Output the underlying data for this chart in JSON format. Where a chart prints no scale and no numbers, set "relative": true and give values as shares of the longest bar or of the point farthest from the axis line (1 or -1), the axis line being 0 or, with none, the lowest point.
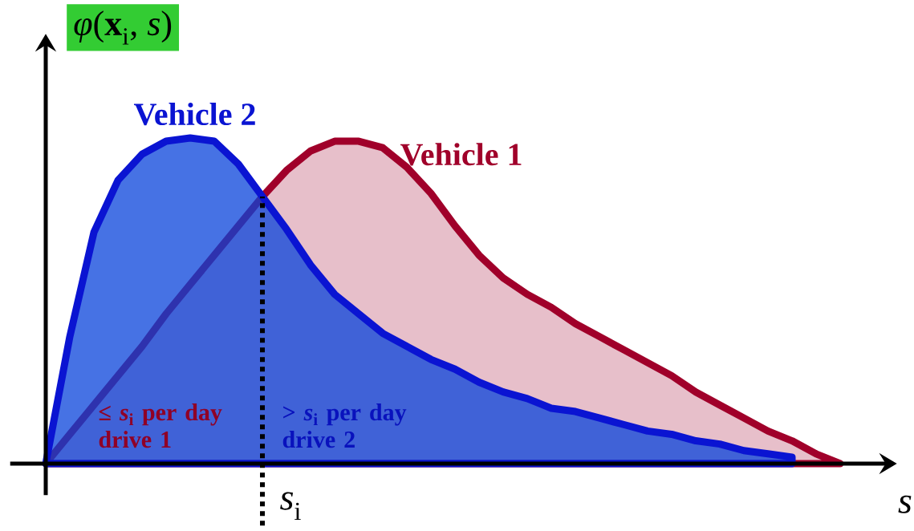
{
  "chart_data": {
    "type": "area",
    "relative": true,
    "legend": false,
    "categories": [
      null,
      null,
      null,
      null,
      null,
      null,
      null,
      null,
      null,
      null,
      null,
      null,
      null,
      null,
      null,
      null,
      null,
      null,
      null,
      null,
      null,
      null,
      null,
      null,
      null,
      null,
      null,
      null,
      null,
      null,
      null,
      null,
      null,
      null
    ],
    "series": [
      {
        "name": "Vehicle 1",
        "color": "#a0002a",
        "values": [
          0,
          0.09,
          0.18,
          0.27,
          0.36,
          0.46,
          0.55,
          0.64,
          0.73,
          0.82,
          0.9,
          0.96,
          0.99,
          0.99,
          0.97,
          0.91,
          0.83,
          0.73,
          0.64,
          0.57,
          0.52,
          0.48,
          0.43,
          0.39,
          0.35,
          0.31,
          0.27,
          0.22,
          0.18,
          0.14,
          0.1,
          0.07,
          0.03,
          0
        ]
      },
      {
        "name": "Vehicle 2",
        "color": "#0a14d2",
        "values": [
          0,
          0.39,
          0.71,
          0.87,
          0.95,
          0.99,
          1.0,
          0.99,
          0.92,
          0.82,
          0.72,
          0.61,
          0.52,
          0.46,
          0.4,
          0.36,
          0.32,
          0.29,
          0.25,
          0.22,
          0.2,
          0.17,
          0.16,
          0.14,
          0.12,
          0.1,
          0.09,
          0.07,
          0.06,
          0.04,
          0.03,
          0.02,
          null,
          null
        ]
      }
    ],
    "annotations": [
      "≤ *s*$_{i}$ per day drive 1",
      "> *s*$_{i}$ per day drive 2",
      "*s*$_{i}$",
      "*φ*(**x**$_{i}$, *s*)",
      "*s*"
    ]
  }
}
